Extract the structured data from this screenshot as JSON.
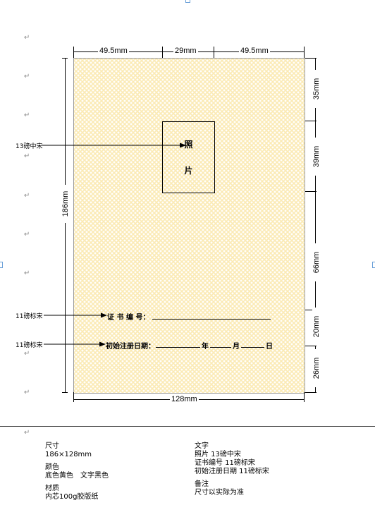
{
  "dimensions": {
    "top_left": "49.5mm",
    "top_mid": "29mm",
    "top_right": "49.5mm",
    "left_height": "186mm",
    "right_1": "35mm",
    "right_2": "39mm",
    "right_3": "66mm",
    "right_4": "20mm",
    "right_5": "26mm",
    "bottom_width": "128mm"
  },
  "card": {
    "photo_char_1": "照",
    "photo_char_2": "片",
    "cert_no_label": "证 书 编 号：",
    "reg_date_label": "初始注册日期：",
    "year": "年",
    "month": "月",
    "day": "日",
    "background_color": "#fbeab4"
  },
  "annotations": {
    "photo_font": "13磅中宋",
    "cert_font": "11磅标宋",
    "date_font": "11磅标宋"
  },
  "paragraph_mark": "↵",
  "specs": {
    "size_title": "尺寸",
    "size_value": "186×128mm",
    "color_title": "颜色",
    "color_value": "底色黄色　文字黑色",
    "material_title": "材质",
    "material_value": "内芯100g胶版纸",
    "text_title": "文字",
    "text_line1": "照片 13磅中宋",
    "text_line2": "证书编号 11磅标宋",
    "text_line3": "初始注册日期 11磅标宋",
    "remark_title": "备注",
    "remark_value": "尺寸以实际为准"
  }
}
